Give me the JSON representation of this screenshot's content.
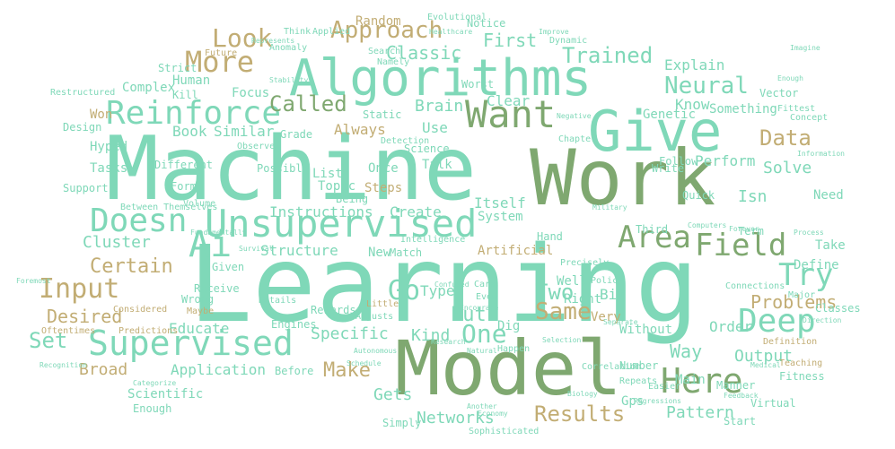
{
  "palette": {
    "mint": "#7fd8b8",
    "sage": "#7fa870",
    "tan": "#c2ad74",
    "background": "#ffffff"
  },
  "words": [
    {
      "text": "Learning",
      "color": "mint"
    },
    {
      "text": "Machine",
      "color": "mint"
    },
    {
      "text": "Model",
      "color": "sage"
    },
    {
      "text": "Work",
      "color": "sage"
    },
    {
      "text": "Give",
      "color": "mint"
    },
    {
      "text": "Algorithms",
      "color": "mint"
    },
    {
      "text": "Unsupervised",
      "color": "mint"
    },
    {
      "text": "Supervised",
      "color": "mint"
    },
    {
      "text": "Reinforce",
      "color": "mint"
    },
    {
      "text": "Doesn",
      "color": "mint"
    },
    {
      "text": "Want",
      "color": "sage"
    },
    {
      "text": "Here",
      "color": "sage"
    },
    {
      "text": "Field",
      "color": "sage"
    },
    {
      "text": "Deep",
      "color": "mint"
    },
    {
      "text": "Try",
      "color": "mint"
    },
    {
      "text": "Area",
      "color": "sage"
    },
    {
      "text": "Input",
      "color": "tan"
    },
    {
      "text": "Ai",
      "color": "mint"
    },
    {
      "text": "More",
      "color": "tan"
    },
    {
      "text": "Look",
      "color": "tan"
    },
    {
      "text": "Approach",
      "color": "tan"
    },
    {
      "text": "Neural",
      "color": "mint"
    },
    {
      "text": "One",
      "color": "mint"
    },
    {
      "text": "Go",
      "color": "mint"
    },
    {
      "text": "Results",
      "color": "tan"
    },
    {
      "text": "Same",
      "color": "tan"
    },
    {
      "text": "Data",
      "color": "tan"
    },
    {
      "text": "Set",
      "color": "mint"
    },
    {
      "text": "Trained",
      "color": "mint"
    },
    {
      "text": "Called",
      "color": "sage"
    },
    {
      "text": "Certain",
      "color": "tan"
    },
    {
      "text": "Classic",
      "color": "mint"
    },
    {
      "text": "Two",
      "color": "mint"
    },
    {
      "text": "Make",
      "color": "tan"
    },
    {
      "text": "Put",
      "color": "mint"
    },
    {
      "text": "Desired",
      "color": "tan"
    },
    {
      "text": "Problems",
      "color": "tan"
    },
    {
      "text": "First",
      "color": "mint"
    },
    {
      "text": "Networks",
      "color": "mint"
    },
    {
      "text": "Pattern",
      "color": "mint"
    },
    {
      "text": "Brain",
      "color": "mint"
    },
    {
      "text": "Way",
      "color": "mint"
    },
    {
      "text": "Cluster",
      "color": "mint"
    },
    {
      "text": "Instructions",
      "color": "mint"
    },
    {
      "text": "Structure",
      "color": "mint"
    },
    {
      "text": "Application",
      "color": "mint"
    },
    {
      "text": "Isn",
      "color": "mint"
    },
    {
      "text": "Solve",
      "color": "mint"
    },
    {
      "text": "Perform",
      "color": "mint"
    },
    {
      "text": "Broad",
      "color": "tan"
    },
    {
      "text": "Output",
      "color": "mint"
    },
    {
      "text": "Kind",
      "color": "mint"
    },
    {
      "text": "Specific",
      "color": "mint"
    },
    {
      "text": "Educate",
      "color": "mint"
    },
    {
      "text": "Create",
      "color": "mint"
    },
    {
      "text": "Gets",
      "color": "mint"
    },
    {
      "text": "Book",
      "color": "mint"
    },
    {
      "text": "Similar",
      "color": "mint"
    },
    {
      "text": "Always",
      "color": "tan"
    },
    {
      "text": "Clear",
      "color": "mint"
    },
    {
      "text": "Know",
      "color": "mint"
    },
    {
      "text": "Use",
      "color": "mint"
    },
    {
      "text": "Explain",
      "color": "mint"
    },
    {
      "text": "Type",
      "color": "mint"
    },
    {
      "text": "Bit",
      "color": "mint"
    },
    {
      "text": "Order",
      "color": "mint"
    },
    {
      "text": "Itself",
      "color": "mint"
    },
    {
      "text": "Talk",
      "color": "mint"
    },
    {
      "text": "Once",
      "color": "mint"
    },
    {
      "text": "Steps",
      "color": "tan"
    },
    {
      "text": "Complex",
      "color": "mint"
    },
    {
      "text": "Won",
      "color": "tan"
    },
    {
      "text": "Focus",
      "color": "mint"
    },
    {
      "text": "Human",
      "color": "mint"
    },
    {
      "text": "Kill",
      "color": "mint"
    },
    {
      "text": "Strict",
      "color": "mint"
    },
    {
      "text": "Random",
      "color": "tan"
    },
    {
      "text": "Genetic",
      "color": "mint"
    },
    {
      "text": "Something",
      "color": "mint"
    },
    {
      "text": "Vector",
      "color": "mint"
    },
    {
      "text": "Hyped",
      "color": "mint"
    },
    {
      "text": "Tasks",
      "color": "mint"
    },
    {
      "text": "Support",
      "color": "mint"
    },
    {
      "text": "System",
      "color": "mint"
    },
    {
      "text": "Artificial",
      "color": "tan"
    },
    {
      "text": "Need",
      "color": "mint"
    },
    {
      "text": "Define",
      "color": "mint"
    },
    {
      "text": "Take",
      "color": "mint"
    },
    {
      "text": "Very",
      "color": "tan"
    },
    {
      "text": "Dig",
      "color": "mint"
    },
    {
      "text": "Well",
      "color": "mint"
    },
    {
      "text": "Right",
      "color": "mint"
    },
    {
      "text": "Without",
      "color": "mint"
    },
    {
      "text": "Main",
      "color": "mint"
    },
    {
      "text": "Before",
      "color": "mint"
    },
    {
      "text": "Start",
      "color": "mint"
    },
    {
      "text": "Gps",
      "color": "mint"
    },
    {
      "text": "Third",
      "color": "mint"
    },
    {
      "text": "Term",
      "color": "mint"
    },
    {
      "text": "Hand",
      "color": "mint"
    },
    {
      "text": "Quick",
      "color": "mint"
    },
    {
      "text": "Write",
      "color": "mint"
    },
    {
      "text": "Follow",
      "color": "mint"
    },
    {
      "text": "List",
      "color": "mint"
    },
    {
      "text": "Topic",
      "color": "mint"
    },
    {
      "text": "Possible",
      "color": "mint"
    },
    {
      "text": "Being",
      "color": "mint"
    },
    {
      "text": "Form",
      "color": "mint"
    },
    {
      "text": "Different",
      "color": "mint"
    },
    {
      "text": "Between Themselves",
      "color": "mint"
    },
    {
      "text": "Given",
      "color": "mint"
    },
    {
      "text": "Receive",
      "color": "mint"
    },
    {
      "text": "Wrong",
      "color": "mint"
    },
    {
      "text": "Maybe",
      "color": "tan"
    },
    {
      "text": "New",
      "color": "mint"
    },
    {
      "text": "Match",
      "color": "mint"
    },
    {
      "text": "Little",
      "color": "tan"
    },
    {
      "text": "Rewards",
      "color": "mint"
    },
    {
      "text": "Details",
      "color": "mint"
    },
    {
      "text": "Adjusts",
      "color": "mint"
    },
    {
      "text": "Engines",
      "color": "mint"
    },
    {
      "text": "Predictions",
      "color": "tan"
    },
    {
      "text": "Considered",
      "color": "tan"
    },
    {
      "text": "Scientific",
      "color": "mint"
    },
    {
      "text": "Enough",
      "color": "mint"
    },
    {
      "text": "Simply",
      "color": "mint"
    },
    {
      "text": "Sophisticated",
      "color": "mint"
    },
    {
      "text": "Another",
      "color": "mint"
    },
    {
      "text": "Regressions",
      "color": "mint"
    },
    {
      "text": "Easier",
      "color": "mint"
    },
    {
      "text": "Virtual",
      "color": "mint"
    },
    {
      "text": "Fitness",
      "color": "mint"
    },
    {
      "text": "Teaching",
      "color": "tan"
    },
    {
      "text": "Definition",
      "color": "tan"
    },
    {
      "text": "Classes",
      "color": "mint"
    },
    {
      "text": "Major",
      "color": "mint"
    },
    {
      "text": "Connections",
      "color": "mint"
    },
    {
      "text": "Process",
      "color": "mint"
    },
    {
      "text": "Forever",
      "color": "mint"
    },
    {
      "text": "Computers",
      "color": "mint"
    },
    {
      "text": "Correlation",
      "color": "mint"
    },
    {
      "text": "Number",
      "color": "mint"
    },
    {
      "text": "Repeats",
      "color": "mint"
    },
    {
      "text": "Manner",
      "color": "mint"
    },
    {
      "text": "Intelligence",
      "color": "mint"
    },
    {
      "text": "Precisely",
      "color": "mint"
    },
    {
      "text": "Police",
      "color": "mint"
    },
    {
      "text": "Separate",
      "color": "mint"
    },
    {
      "text": "Cars",
      "color": "mint"
    },
    {
      "text": "Even",
      "color": "mint"
    },
    {
      "text": "Encourage",
      "color": "mint"
    },
    {
      "text": "Research",
      "color": "mint"
    },
    {
      "text": "Confused",
      "color": "mint"
    },
    {
      "text": "Natural",
      "color": "mint"
    },
    {
      "text": "Happen",
      "color": "mint"
    },
    {
      "text": "Selection",
      "color": "mint"
    },
    {
      "text": "Biology",
      "color": "mint"
    },
    {
      "text": "Grade",
      "color": "mint"
    },
    {
      "text": "Observe",
      "color": "mint"
    },
    {
      "text": "Detection",
      "color": "mint"
    },
    {
      "text": "Science",
      "color": "mint"
    },
    {
      "text": "Static",
      "color": "mint"
    },
    {
      "text": "Worst",
      "color": "mint"
    },
    {
      "text": "Negative",
      "color": "mint"
    },
    {
      "text": "Chapter",
      "color": "mint"
    },
    {
      "text": "Fittest",
      "color": "mint"
    },
    {
      "text": "Concept",
      "color": "mint"
    },
    {
      "text": "Information",
      "color": "mint"
    },
    {
      "text": "Enough",
      "color": "mint"
    },
    {
      "text": "Imagine",
      "color": "mint"
    },
    {
      "text": "Dynamic",
      "color": "mint"
    },
    {
      "text": "Notice",
      "color": "mint"
    },
    {
      "text": "Evolutional",
      "color": "mint"
    },
    {
      "text": "Think",
      "color": "mint"
    },
    {
      "text": "Applied",
      "color": "mint"
    },
    {
      "text": "Search",
      "color": "mint"
    },
    {
      "text": "Namely",
      "color": "mint"
    },
    {
      "text": "Anomaly",
      "color": "mint"
    },
    {
      "text": "Future",
      "color": "tan"
    },
    {
      "text": "Represents",
      "color": "mint"
    },
    {
      "text": "Healthcare",
      "color": "mint"
    },
    {
      "text": "Design",
      "color": "mint"
    },
    {
      "text": "Restructured",
      "color": "mint"
    },
    {
      "text": "Military",
      "color": "mint"
    },
    {
      "text": "Volume",
      "color": "mint"
    },
    {
      "text": "Fundamentally",
      "color": "mint"
    },
    {
      "text": "Survival",
      "color": "mint"
    },
    {
      "text": "Foremost",
      "color": "mint"
    },
    {
      "text": "Oftentimes",
      "color": "tan"
    },
    {
      "text": "Recognition",
      "color": "mint"
    },
    {
      "text": "Categorize",
      "color": "mint"
    },
    {
      "text": "Autonomous",
      "color": "mint"
    },
    {
      "text": "Schedule",
      "color": "mint"
    },
    {
      "text": "Economy",
      "color": "mint"
    },
    {
      "text": "Feedback",
      "color": "mint"
    },
    {
      "text": "Medical",
      "color": "mint"
    },
    {
      "text": "Direction",
      "color": "mint"
    },
    {
      "text": "Improve",
      "color": "mint"
    },
    {
      "text": "Stability",
      "color": "mint"
    }
  ]
}
